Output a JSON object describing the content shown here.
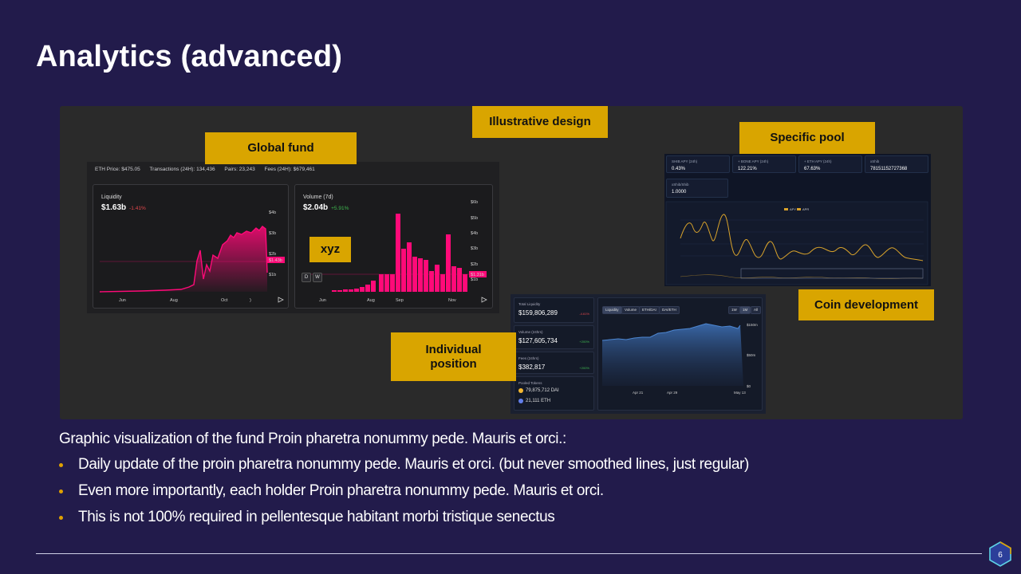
{
  "slide": {
    "title": "Analytics (advanced)",
    "page_number": "6",
    "intro": "Graphic visualization of the fund Proin pharetra nonummy pede. Mauris et orci.:",
    "bullets": [
      "Daily update of the proin pharetra nonummy pede. Mauris et orci. (but never smoothed lines, just regular)",
      "Even more importantly, each holder Proin pharetra nonummy pede. Mauris et orci.",
      "This is not 100% required in pellentesque habitant morbi tristique senectus"
    ],
    "accent_color": "#d9a500",
    "background_color": "#221b4b"
  },
  "tags": {
    "illustrative": "Illustrative design",
    "global_fund": "Global fund",
    "specific_pool": "Specific pool",
    "xyz": "xyz",
    "coin_dev": "Coin development",
    "individual_position": "Individual position"
  },
  "global_fund": {
    "stats": [
      "ETH Price: $475.05",
      "Transactions (24H): 134,436",
      "Pairs: 23,243",
      "Fees (24H): $679,461"
    ],
    "liquidity": {
      "label": "Liquidity",
      "value": "$1.63b",
      "change": "-1.41%",
      "y_ticks": [
        "$4b",
        "$3b",
        "$2b",
        "$1b"
      ],
      "marker": "$1.43b",
      "x_ticks": [
        "Jun",
        "Aug",
        "Oct",
        ")"
      ]
    },
    "volume": {
      "label": "Volume (7d)",
      "value": "$2.04b",
      "change": "+5.91%",
      "y_ticks": [
        "$6b",
        "$5b",
        "$4b",
        "$3b",
        "$2b",
        "$1b"
      ],
      "marker": "$1.31b",
      "x_ticks": [
        "Jun",
        "Aug",
        "Sep",
        "Nov"
      ],
      "buttons": [
        "D",
        "W"
      ]
    },
    "series_color": "#ff0a78"
  },
  "specific_pool": {
    "stats": [
      {
        "key": "SHIB APY (24h)",
        "value": "0.43%"
      },
      {
        "key": "+ BONE APY (24h)",
        "value": "122.21%"
      },
      {
        "key": "+ ETH APY (24h)",
        "value": "67.63%"
      },
      {
        "key": "xShib",
        "value": "78151152727368"
      },
      {
        "key": "xShib/Shib",
        "value": "1.0000"
      }
    ],
    "legend": [
      "APY",
      "APR"
    ],
    "line_color": "#d9a32b"
  },
  "individual_position": {
    "cards": [
      {
        "key": "Total Liquidity",
        "value": "$159,806,289",
        "change": "-4.61%"
      },
      {
        "key": "Volume (24hrs)",
        "value": "$127,605,734",
        "change": "+200%"
      },
      {
        "key": "Fees (24hrs)",
        "value": "$382,817",
        "change": "+200%"
      }
    ],
    "pooled": {
      "key": "Pooled Tokens",
      "tokens": [
        "79,875,712 DAI",
        "21,111 ETH"
      ]
    },
    "tabs": [
      "Liquidity",
      "Volume",
      "ETH/DAI",
      "DAI/ETH"
    ],
    "ranges": [
      "1W",
      "1M",
      "All"
    ],
    "y_ticks": [
      "$150m",
      "$50m",
      "$0"
    ],
    "x_ticks": [
      "Apr 21",
      "Apr 29",
      "May 13"
    ]
  }
}
